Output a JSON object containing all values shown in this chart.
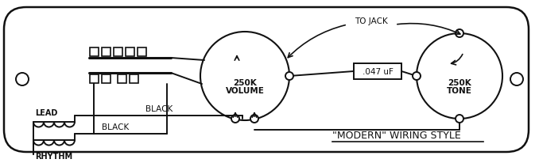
{
  "bg_color": "#ffffff",
  "line_color": "#111111",
  "title": "\"MODERN\" WIRING STYLE",
  "vol_label1": "250K",
  "vol_label2": "VOLUME",
  "tone_label1": "250K",
  "tone_label2": "TONE",
  "cap_label": ".047 uF",
  "jack_label": "TO JACK",
  "lead_label": "LEAD",
  "rhythm_label": "RHYTHM",
  "black_label": "BLACK"
}
